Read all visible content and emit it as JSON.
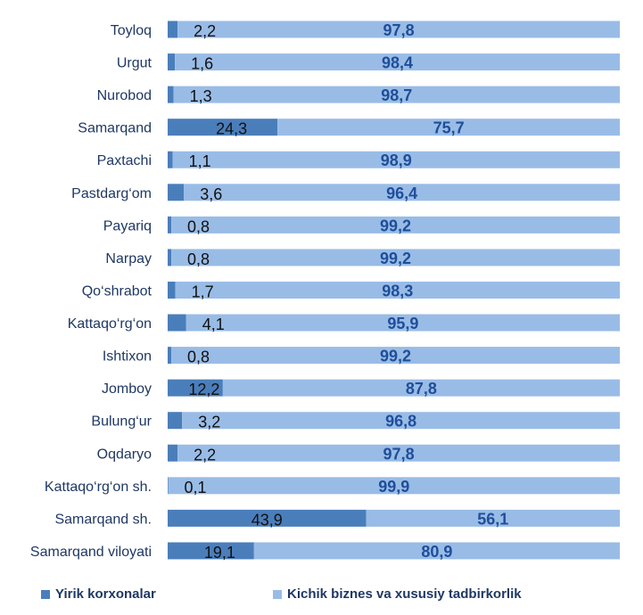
{
  "chart_data": {
    "type": "bar",
    "orientation": "horizontal",
    "stacked": true,
    "categories": [
      "Toyloq",
      "Urgut",
      "Nurobod",
      "Samarqand",
      "Paxtachi",
      "Pastdarg‘om",
      "Payariq",
      "Narpay",
      "Qo‘shrabot",
      "Kattaqo‘rg‘on",
      "Ishtixon",
      "Jomboy",
      "Bulung‘ur",
      "Oqdaryo",
      "Kattaqo‘rg‘on  sh.",
      "Samarqand sh.",
      "Samarqand viloyati"
    ],
    "series": [
      {
        "name": "Yirik korxonalar",
        "color": "#4a7ebb",
        "values": [
          2.2,
          1.6,
          1.3,
          24.3,
          1.1,
          3.6,
          0.8,
          0.8,
          1.7,
          4.1,
          0.8,
          12.2,
          3.2,
          2.2,
          0.1,
          43.9,
          19.1
        ],
        "labels": [
          "2,2",
          "1,6",
          "1,3",
          "24,3",
          "1,1",
          "3,6",
          "0,8",
          "0,8",
          "1,7",
          "4,1",
          "0,8",
          "12,2",
          "3,2",
          "2,2",
          "0,1",
          "43,9",
          "19,1"
        ]
      },
      {
        "name": "Kichik biznes va xususiy tadbirkorlik",
        "color": "#99bce6",
        "values": [
          97.8,
          98.4,
          98.7,
          75.7,
          98.9,
          96.4,
          99.2,
          99.2,
          98.3,
          95.9,
          99.2,
          87.8,
          96.8,
          97.8,
          99.9,
          56.1,
          80.9
        ],
        "labels": [
          "97,8",
          "98,4",
          "98,7",
          "75,7",
          "98,9",
          "96,4",
          "99,2",
          "99,2",
          "98,3",
          "95,9",
          "99,2",
          "87,8",
          "96,8",
          "97,8",
          "99,9",
          "56,1",
          "80,9"
        ]
      }
    ],
    "xlim": [
      0,
      100
    ],
    "grid": false,
    "legend_position": "bottom"
  }
}
